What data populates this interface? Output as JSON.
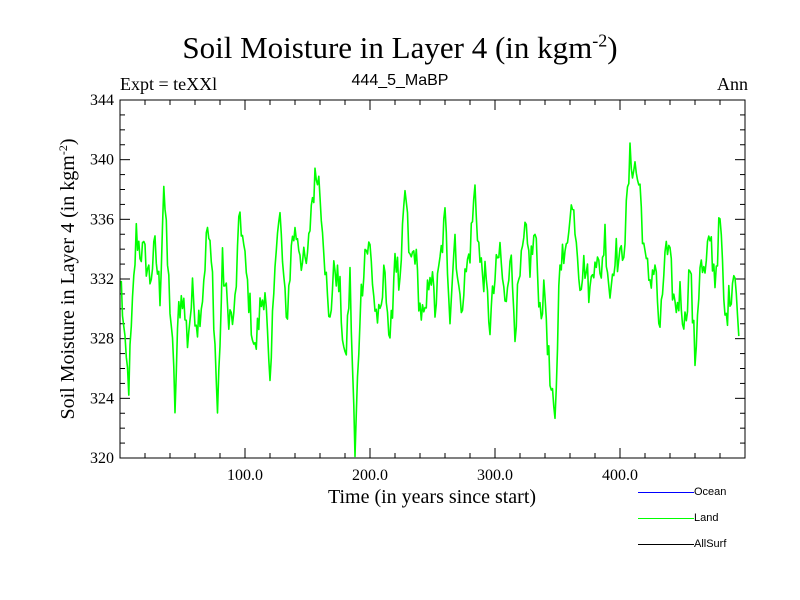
{
  "chart_data": {
    "type": "line",
    "title": "Soil Moisture in Layer 4 (in kgm",
    "title_sup": "-2",
    "title_end": ")",
    "left_label": "Expt = teXXl",
    "center_label": "444_5_MaBP",
    "right_label": "Ann",
    "xlabel": "Time (in years since start)",
    "ylabel": "Soil Moisture in Layer 4 (in kgm",
    "ylabel_sup": "-2",
    "ylabel_end": ")",
    "xlim": [
      0,
      500
    ],
    "ylim": [
      320,
      344
    ],
    "xticks": [
      100,
      200,
      300,
      400
    ],
    "xtick_labels": [
      "100.0",
      "200.0",
      "300.0",
      "400.0"
    ],
    "yticks": [
      320,
      324,
      328,
      332,
      336,
      340,
      344
    ],
    "ytick_labels": [
      "320",
      "324",
      "328",
      "332",
      "336",
      "340",
      "344"
    ],
    "legend": [
      {
        "name": "Ocean",
        "color": "#0000ff"
      },
      {
        "name": "Land",
        "color": "#00ff00"
      },
      {
        "name": "AllSurf",
        "color": "#000000"
      }
    ],
    "series": [
      {
        "name": "Land",
        "color": "#00ff00",
        "x_start": 1,
        "x_step": 1,
        "anchors": [
          [
            1,
            331.5
          ],
          [
            4,
            327
          ],
          [
            7,
            325
          ],
          [
            10,
            330
          ],
          [
            13,
            335
          ],
          [
            16,
            334
          ],
          [
            20,
            333.5
          ],
          [
            24,
            332
          ],
          [
            28,
            334
          ],
          [
            32,
            331
          ],
          [
            35,
            338.5
          ],
          [
            38,
            333
          ],
          [
            41,
            329
          ],
          [
            44,
            323.5
          ],
          [
            47,
            330
          ],
          [
            50,
            331
          ],
          [
            54,
            328
          ],
          [
            58,
            331
          ],
          [
            62,
            329
          ],
          [
            66,
            331
          ],
          [
            70,
            335.5
          ],
          [
            74,
            332
          ],
          [
            78,
            323
          ],
          [
            82,
            333
          ],
          [
            86,
            330
          ],
          [
            91,
            329
          ],
          [
            96,
            336.5
          ],
          [
            100,
            333
          ],
          [
            104,
            330
          ],
          [
            108,
            327
          ],
          [
            112,
            330
          ],
          [
            116,
            331.5
          ],
          [
            120,
            324
          ],
          [
            124,
            334
          ],
          [
            128,
            336
          ],
          [
            133,
            329
          ],
          [
            138,
            335
          ],
          [
            142,
            335
          ],
          [
            146,
            333
          ],
          [
            150,
            333
          ],
          [
            153,
            337
          ],
          [
            158,
            339.5
          ],
          [
            162,
            336
          ],
          [
            167,
            329
          ],
          [
            172,
            333
          ],
          [
            176,
            331
          ],
          [
            180,
            326
          ],
          [
            184,
            332
          ],
          [
            188,
            320
          ],
          [
            192,
            330
          ],
          [
            196,
            334
          ],
          [
            200,
            334
          ],
          [
            204,
            330
          ],
          [
            208,
            329
          ],
          [
            212,
            333
          ],
          [
            216,
            327
          ],
          [
            220,
            334
          ],
          [
            224,
            331
          ],
          [
            228,
            338
          ],
          [
            232,
            333
          ],
          [
            236,
            334
          ],
          [
            240,
            330
          ],
          [
            244,
            329
          ],
          [
            248,
            333
          ],
          [
            252,
            330
          ],
          [
            256,
            333
          ],
          [
            260,
            336
          ],
          [
            264,
            330
          ],
          [
            268,
            335
          ],
          [
            272,
            330
          ],
          [
            276,
            332
          ],
          [
            280,
            334
          ],
          [
            284,
            338
          ],
          [
            288,
            333
          ],
          [
            292,
            332
          ],
          [
            296,
            329
          ],
          [
            300,
            332
          ],
          [
            304,
            334
          ],
          [
            308,
            330
          ],
          [
            312,
            334
          ],
          [
            316,
            329
          ],
          [
            320,
            332
          ],
          [
            324,
            335
          ],
          [
            328,
            333
          ],
          [
            332,
            335
          ],
          [
            336,
            330
          ],
          [
            340,
            331
          ],
          [
            344,
            325
          ],
          [
            348,
            322
          ],
          [
            352,
            334
          ],
          [
            356,
            333
          ],
          [
            360,
            337
          ],
          [
            364,
            336
          ],
          [
            368,
            332
          ],
          [
            372,
            333
          ],
          [
            376,
            331
          ],
          [
            380,
            334
          ],
          [
            384,
            332
          ],
          [
            388,
            335
          ],
          [
            392,
            331
          ],
          [
            396,
            334
          ],
          [
            400,
            333
          ],
          [
            404,
            335
          ],
          [
            408,
            340
          ],
          [
            412,
            339.5
          ],
          [
            416,
            338
          ],
          [
            420,
            333
          ],
          [
            424,
            332
          ],
          [
            428,
            333
          ],
          [
            432,
            328
          ],
          [
            436,
            334
          ],
          [
            440,
            333
          ],
          [
            444,
            330
          ],
          [
            448,
            331
          ],
          [
            452,
            329
          ],
          [
            456,
            333
          ],
          [
            460,
            326.5
          ],
          [
            464,
            333
          ],
          [
            468,
            332
          ],
          [
            472,
            335
          ],
          [
            476,
            332
          ],
          [
            480,
            336
          ],
          [
            484,
            329
          ],
          [
            488,
            331
          ],
          [
            492,
            333
          ],
          [
            495,
            328
          ]
        ]
      }
    ]
  }
}
